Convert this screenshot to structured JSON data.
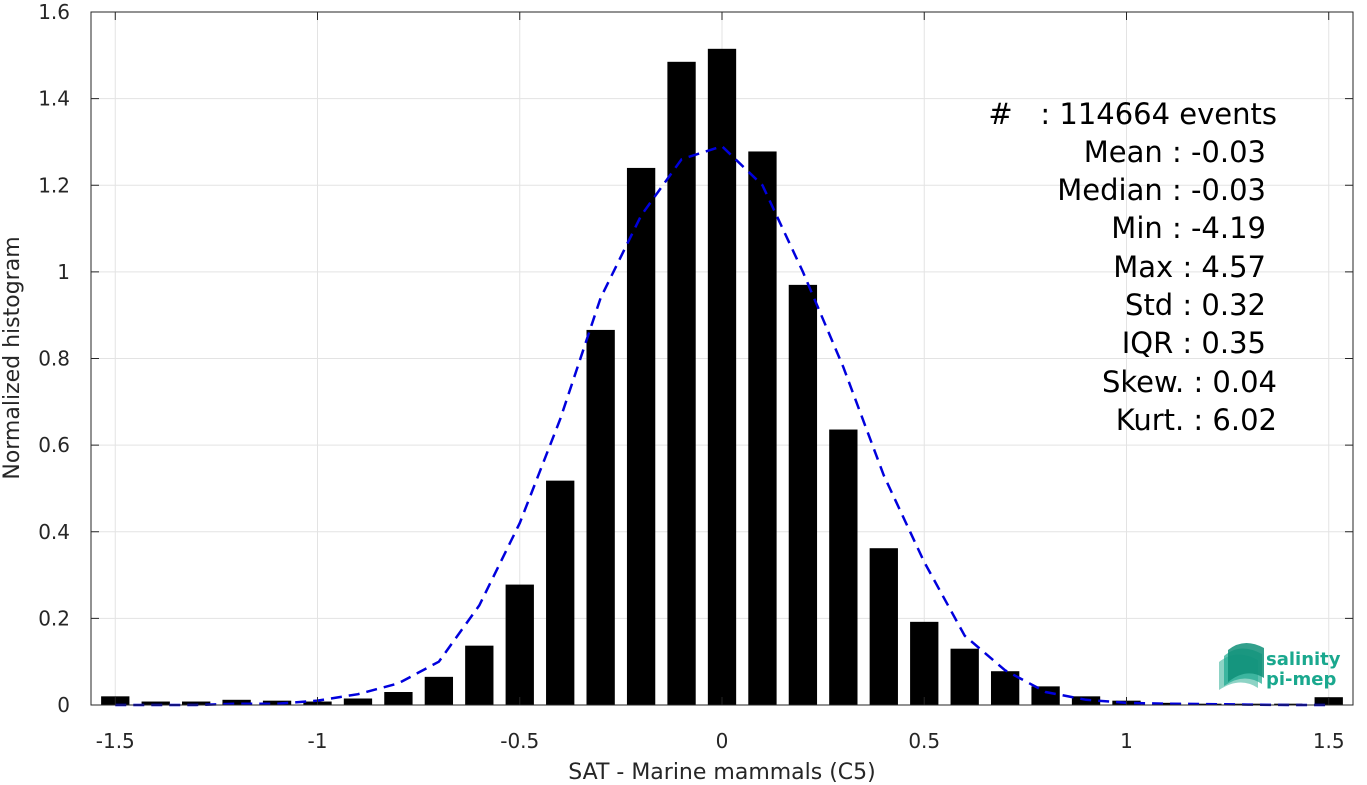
{
  "chart_data": {
    "type": "bar",
    "title": "",
    "xlabel": "SAT - Marine mammals (C5)",
    "ylabel": "Normalized histogram",
    "xlim": [
      -1.56,
      1.56
    ],
    "ylim": [
      0,
      1.6
    ],
    "x_ticks": [
      -1.5,
      -1,
      -0.5,
      0,
      0.5,
      1,
      1.5
    ],
    "x_tick_labels": [
      "-1.5",
      "-1",
      "-0.5",
      "0",
      "0.5",
      "1",
      "1.5"
    ],
    "y_ticks": [
      0,
      0.2,
      0.4,
      0.6,
      0.8,
      1,
      1.2,
      1.4,
      1.6
    ],
    "y_tick_labels": [
      "0",
      "0.2",
      "0.4",
      "0.6",
      "0.8",
      "1",
      "1.2",
      "1.4",
      "1.6"
    ],
    "grid": true,
    "bin_width": 0.1,
    "bin_centers": [
      -1.5,
      -1.4,
      -1.3,
      -1.2,
      -1.1,
      -1.0,
      -0.9,
      -0.8,
      -0.7,
      -0.6,
      -0.5,
      -0.4,
      -0.3,
      -0.2,
      -0.1,
      0.0,
      0.1,
      0.2,
      0.3,
      0.4,
      0.5,
      0.6,
      0.7,
      0.8,
      0.9,
      1.0,
      1.1,
      1.2,
      1.3,
      1.4,
      1.5
    ],
    "values": [
      0.02,
      0.008,
      0.008,
      0.012,
      0.01,
      0.008,
      0.015,
      0.03,
      0.065,
      0.137,
      0.278,
      0.518,
      0.866,
      1.24,
      1.485,
      1.515,
      1.278,
      0.97,
      0.636,
      0.362,
      0.192,
      0.13,
      0.078,
      0.043,
      0.02,
      0.01,
      0.005,
      0.003,
      0.003,
      0.003,
      0.018
    ],
    "bar_color": "#000000",
    "fit_curve": {
      "style": "dashed",
      "color": "#0000dd",
      "x": [
        -1.5,
        -1.4,
        -1.3,
        -1.2,
        -1.1,
        -1.0,
        -0.9,
        -0.8,
        -0.7,
        -0.6,
        -0.5,
        -0.4,
        -0.3,
        -0.2,
        -0.1,
        0.0,
        0.1,
        0.2,
        0.3,
        0.4,
        0.5,
        0.6,
        0.7,
        0.8,
        0.9,
        1.0,
        1.1,
        1.2,
        1.3,
        1.4,
        1.5
      ],
      "y": [
        0.0,
        0.0,
        0.0,
        0.003,
        0.003,
        0.01,
        0.025,
        0.05,
        0.1,
        0.23,
        0.42,
        0.66,
        0.94,
        1.13,
        1.26,
        1.29,
        1.2,
        1.0,
        0.78,
        0.53,
        0.33,
        0.16,
        0.08,
        0.03,
        0.012,
        0.005,
        0.003,
        0.002,
        0.001,
        0.0,
        0.0
      ]
    },
    "annotations": {
      "count": "#   : 114664 events",
      "mean": "Mean : -0.03",
      "median": "Median : -0.03",
      "min": "Min : -4.19",
      "max": "Max : 4.57",
      "std": "Std : 0.32",
      "iqr": "IQR : 0.35",
      "skew": "Skew. : 0.04",
      "kurt": "Kurt. : 6.02"
    }
  },
  "logo": {
    "line1": "salinity",
    "line2": "pi-mep",
    "color": "#1aa88e"
  }
}
